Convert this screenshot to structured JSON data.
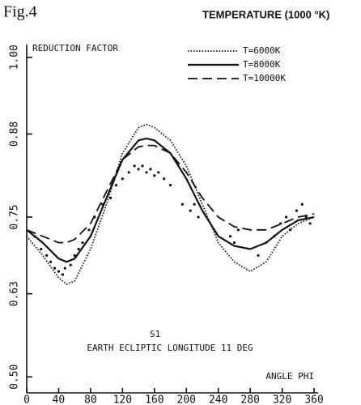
{
  "chart_data": {
    "type": "line",
    "figure_label": "Fig.4",
    "title": "TEMPERATURE (1000 °K)",
    "ylabel": "REDUCTION FACTOR",
    "xlabel": "ANGLE PHI",
    "annotations": [
      "S1",
      "EARTH ECLIPTIC LONGITUDE 11 DEG"
    ],
    "xlim": [
      0,
      365
    ],
    "ylim": [
      0.475,
      1.02
    ],
    "xticks": [
      0,
      40,
      80,
      120,
      160,
      200,
      240,
      280,
      320,
      360
    ],
    "yticks": [
      {
        "value": 1.0,
        "label": "1.00"
      },
      0.88,
      0.75,
      0.63,
      {
        "value": 0.5,
        "label": "0.50"
      }
    ],
    "legend": "upper right",
    "x": [
      0,
      20,
      40,
      50,
      60,
      80,
      100,
      120,
      140,
      150,
      160,
      180,
      200,
      220,
      240,
      260,
      280,
      300,
      320,
      340,
      360
    ],
    "series": [
      {
        "name": "T=6000K",
        "color": "#111111",
        "style": "dotted",
        "values": [
          0.72,
          0.69,
          0.655,
          0.645,
          0.65,
          0.7,
          0.77,
          0.85,
          0.89,
          0.895,
          0.89,
          0.87,
          0.83,
          0.77,
          0.71,
          0.68,
          0.665,
          0.68,
          0.72,
          0.74,
          0.75
        ]
      },
      {
        "name": "T=8000K",
        "color": "#111111",
        "style": "solid",
        "values": [
          0.73,
          0.71,
          0.685,
          0.68,
          0.685,
          0.72,
          0.78,
          0.84,
          0.87,
          0.873,
          0.87,
          0.85,
          0.81,
          0.76,
          0.72,
          0.705,
          0.7,
          0.71,
          0.73,
          0.745,
          0.75
        ]
      },
      {
        "name": "T=10000K",
        "color": "#111111",
        "style": "dashed",
        "values": [
          0.73,
          0.72,
          0.71,
          0.71,
          0.715,
          0.74,
          0.79,
          0.84,
          0.86,
          0.862,
          0.862,
          0.85,
          0.82,
          0.78,
          0.75,
          0.735,
          0.73,
          0.73,
          0.74,
          0.75,
          0.755
        ]
      }
    ],
    "scatter": {
      "color": "#111111",
      "x": [
        10,
        18,
        25,
        30,
        35,
        40,
        45,
        48,
        55,
        60,
        65,
        70,
        78,
        85,
        95,
        105,
        112,
        120,
        128,
        135,
        140,
        145,
        150,
        155,
        160,
        165,
        172,
        180,
        195,
        205,
        210,
        215,
        255,
        260,
        265,
        290,
        300,
        310,
        318,
        325,
        330,
        338,
        345,
        350,
        355
      ],
      "y": [
        0.72,
        0.7,
        0.69,
        0.68,
        0.67,
        0.665,
        0.66,
        0.67,
        0.675,
        0.69,
        0.7,
        0.71,
        0.73,
        0.75,
        0.77,
        0.78,
        0.8,
        0.81,
        0.82,
        0.83,
        0.825,
        0.83,
        0.82,
        0.825,
        0.815,
        0.82,
        0.81,
        0.8,
        0.77,
        0.76,
        0.77,
        0.75,
        0.72,
        0.71,
        0.73,
        0.69,
        0.71,
        0.72,
        0.74,
        0.75,
        0.73,
        0.76,
        0.77,
        0.75,
        0.74
      ]
    }
  }
}
